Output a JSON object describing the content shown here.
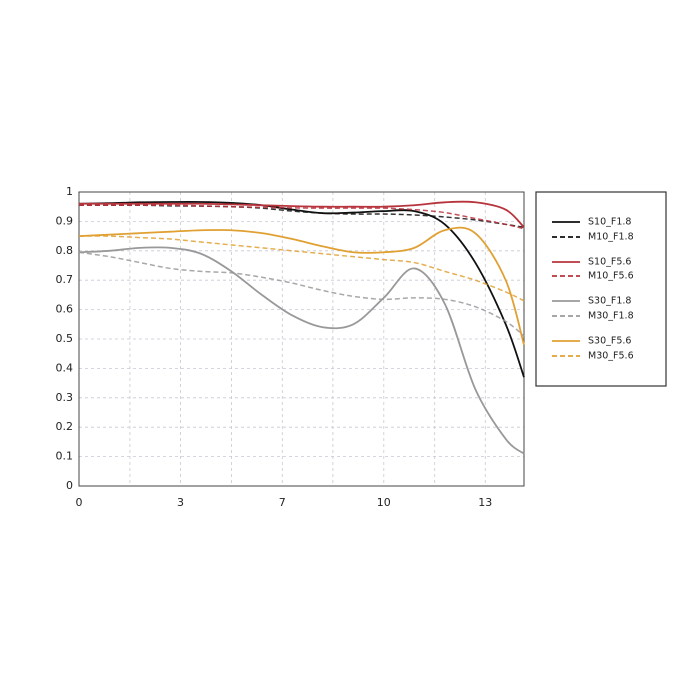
{
  "chart_data": {
    "type": "line",
    "x": [
      0,
      1,
      2,
      3,
      4,
      5,
      6,
      7,
      8,
      9,
      10,
      11,
      12,
      13,
      14,
      14.6
    ],
    "xlim": [
      0,
      14.6
    ],
    "xticks": [
      {
        "value": 0,
        "label": "0"
      },
      {
        "value": 3.33,
        "label": "3"
      },
      {
        "value": 6.67,
        "label": "7"
      },
      {
        "value": 10,
        "label": "10"
      },
      {
        "value": 13.33,
        "label": "13"
      }
    ],
    "x_minor_ticks": [
      1.67,
      5,
      8.33,
      11.67
    ],
    "ylim": [
      0,
      1
    ],
    "yticks": [
      0,
      0.1,
      0.2,
      0.3,
      0.4,
      0.5,
      0.6,
      0.7,
      0.8,
      0.9,
      1
    ],
    "grid": true,
    "legend": "outside-right",
    "series": [
      {
        "name": "S10_F1.8",
        "color": "#111111",
        "dash": false,
        "values": [
          0.96,
          0.962,
          0.965,
          0.966,
          0.966,
          0.963,
          0.955,
          0.94,
          0.928,
          0.93,
          0.935,
          0.935,
          0.89,
          0.76,
          0.55,
          0.37
        ]
      },
      {
        "name": "M10_F1.8",
        "color": "#111111",
        "dash": true,
        "values": [
          0.955,
          0.955,
          0.955,
          0.953,
          0.952,
          0.95,
          0.945,
          0.935,
          0.928,
          0.925,
          0.925,
          0.922,
          0.915,
          0.905,
          0.89,
          0.88
        ]
      },
      {
        "name": "S10_F5.6",
        "color": "#b8343c",
        "dash": false,
        "values": [
          0.96,
          0.96,
          0.96,
          0.96,
          0.96,
          0.958,
          0.955,
          0.952,
          0.95,
          0.95,
          0.95,
          0.955,
          0.965,
          0.965,
          0.94,
          0.88
        ]
      },
      {
        "name": "M10_F5.6",
        "color": "#b8343c",
        "dash": true,
        "values": [
          0.955,
          0.955,
          0.955,
          0.955,
          0.953,
          0.95,
          0.948,
          0.946,
          0.945,
          0.945,
          0.945,
          0.94,
          0.93,
          0.91,
          0.89,
          0.875
        ]
      },
      {
        "name": "S30_F1.8",
        "color": "#999999",
        "dash": false,
        "values": [
          0.795,
          0.8,
          0.81,
          0.81,
          0.79,
          0.73,
          0.65,
          0.58,
          0.54,
          0.55,
          0.64,
          0.74,
          0.62,
          0.33,
          0.16,
          0.11
        ]
      },
      {
        "name": "M30_F1.8",
        "color": "#999999",
        "dash": true,
        "values": [
          0.795,
          0.78,
          0.76,
          0.74,
          0.73,
          0.725,
          0.71,
          0.69,
          0.665,
          0.645,
          0.635,
          0.64,
          0.635,
          0.61,
          0.56,
          0.51
        ]
      },
      {
        "name": "S30_F5.6",
        "color": "#e0a032",
        "dash": false,
        "values": [
          0.85,
          0.855,
          0.86,
          0.865,
          0.87,
          0.87,
          0.86,
          0.84,
          0.815,
          0.795,
          0.795,
          0.81,
          0.87,
          0.86,
          0.7,
          0.48
        ]
      },
      {
        "name": "M30_F5.6",
        "color": "#e0a032",
        "dash": true,
        "values": [
          0.85,
          0.85,
          0.845,
          0.84,
          0.83,
          0.82,
          0.81,
          0.8,
          0.79,
          0.78,
          0.77,
          0.76,
          0.73,
          0.7,
          0.66,
          0.63
        ]
      }
    ]
  }
}
